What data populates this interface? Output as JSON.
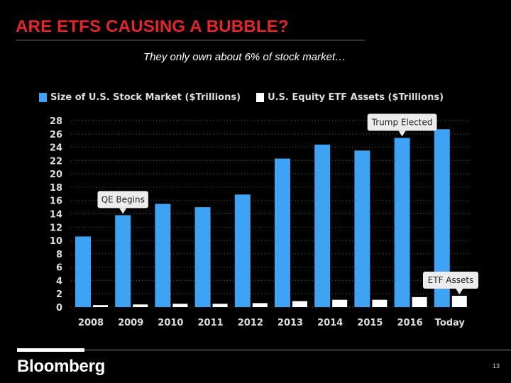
{
  "slide": {
    "title": "ARE ETFS CAUSING A BUBBLE?",
    "subtitle": "They only own about 6% of stock market…",
    "brand": "Bloomberg",
    "page_number": "13"
  },
  "colors": {
    "background": "#000000",
    "title_red": "#e8232a",
    "market_blue": "#3ea3f5",
    "etf_white": "#ffffff",
    "callout_bg": "#ececec"
  },
  "chart_data": {
    "type": "bar",
    "categories": [
      "2008",
      "2009",
      "2010",
      "2011",
      "2012",
      "2013",
      "2014",
      "2015",
      "2016",
      "Today"
    ],
    "series": [
      {
        "name": "Size of U.S. Stock Market ($Trillions)",
        "color": "#3ea3f5",
        "values": [
          10.6,
          13.8,
          15.5,
          15.0,
          16.9,
          22.3,
          24.4,
          23.5,
          25.4,
          26.7
        ]
      },
      {
        "name": "U.S. Equity ETF Assets ($Trillions)",
        "color": "#ffffff",
        "values": [
          0.3,
          0.4,
          0.5,
          0.5,
          0.6,
          0.9,
          1.1,
          1.1,
          1.5,
          1.7
        ]
      }
    ],
    "yticks": [
      0,
      2,
      4,
      6,
      8,
      10,
      12,
      14,
      16,
      18,
      20,
      22,
      24,
      26,
      28
    ],
    "ylim": [
      0,
      28
    ],
    "grid": true,
    "legend_position": "top-left",
    "annotations": [
      {
        "text": "QE Begins",
        "category": "2009",
        "series": 0
      },
      {
        "text": "Trump Elected",
        "category": "2016",
        "series": 0
      },
      {
        "text": "ETF Assets",
        "category": "Today",
        "series": 1
      }
    ]
  }
}
